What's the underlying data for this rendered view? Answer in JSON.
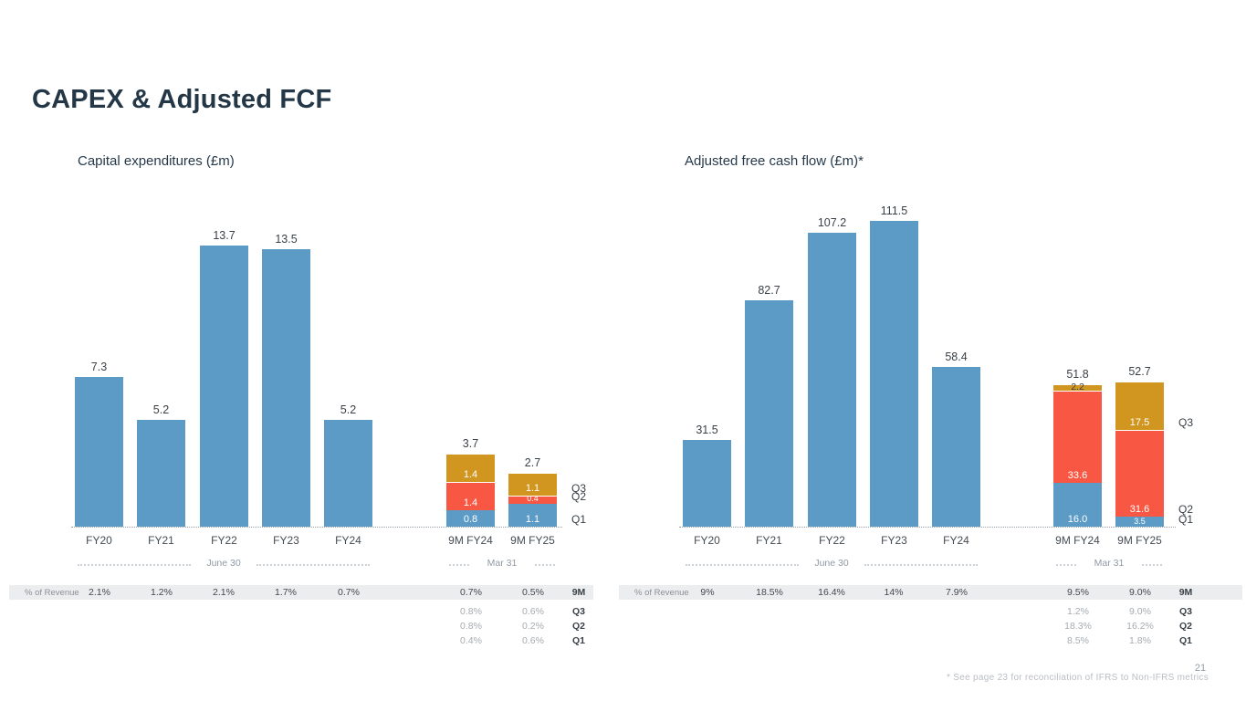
{
  "slide": {
    "title": "CAPEX & Adjusted FCF",
    "page_number": "21",
    "footnote": "* See page 23 for reconciliation of IFRS to Non-IFRS metrics"
  },
  "colors": {
    "bar_blue": "#5B9BC5",
    "q2_red": "#F85843",
    "q3_amber": "#D0961F",
    "table_band": "#ECEDEF",
    "title_text": "#243746"
  },
  "chart_data": [
    {
      "type": "bar",
      "title": "Capital expenditures (£m)",
      "ylabel": "£m",
      "annual": {
        "categories": [
          "FY20",
          "FY21",
          "FY22",
          "FY23",
          "FY24"
        ],
        "values": [
          "7.3",
          "5.2",
          "13.7",
          "13.5",
          "5.2"
        ],
        "period_note": "June 30"
      },
      "nine_month": {
        "categories": [
          "9M FY24",
          "9M FY25"
        ],
        "totals": [
          "3.7",
          "2.7"
        ],
        "series": [
          {
            "name": "Q1",
            "color": "blue",
            "values": [
              "0.8",
              "1.1"
            ]
          },
          {
            "name": "Q2",
            "color": "red",
            "values": [
              "1.4",
              "0.4"
            ]
          },
          {
            "name": "Q3",
            "color": "amber",
            "values": [
              "1.4",
              "1.1"
            ]
          }
        ],
        "period_note": "Mar 31"
      },
      "pct_of_revenue": {
        "label": "% of Revenue",
        "rows": [
          {
            "name": "9M",
            "annual": [
              "2.1%",
              "1.2%",
              "2.1%",
              "1.7%",
              "0.7%"
            ],
            "nine_month": [
              "0.7%",
              "0.5%"
            ]
          },
          {
            "name": "Q3",
            "annual": [],
            "nine_month": [
              "0.8%",
              "0.6%"
            ]
          },
          {
            "name": "Q2",
            "annual": [],
            "nine_month": [
              "0.8%",
              "0.2%"
            ]
          },
          {
            "name": "Q1",
            "annual": [],
            "nine_month": [
              "0.4%",
              "0.6%"
            ]
          }
        ]
      }
    },
    {
      "type": "bar",
      "title": "Adjusted free cash flow (£m)*",
      "ylabel": "£m",
      "annual": {
        "categories": [
          "FY20",
          "FY21",
          "FY22",
          "FY23",
          "FY24"
        ],
        "values": [
          "31.5",
          "82.7",
          "107.2",
          "111.5",
          "58.4"
        ],
        "period_note": "June 30"
      },
      "nine_month": {
        "categories": [
          "9M FY24",
          "9M FY25"
        ],
        "totals": [
          "51.8",
          "52.7"
        ],
        "series": [
          {
            "name": "Q1",
            "color": "blue",
            "values": [
              "16.0",
              "3.5"
            ]
          },
          {
            "name": "Q2",
            "color": "red",
            "values": [
              "33.6",
              "31.6"
            ]
          },
          {
            "name": "Q3",
            "color": "amber",
            "values": [
              "2.2",
              "17.5"
            ]
          }
        ],
        "period_note": "Mar 31"
      },
      "pct_of_revenue": {
        "label": "% of Revenue",
        "rows": [
          {
            "name": "9M",
            "annual": [
              "9%",
              "18.5%",
              "16.4%",
              "14%",
              "7.9%"
            ],
            "nine_month": [
              "9.5%",
              "9.0%"
            ]
          },
          {
            "name": "Q3",
            "annual": [],
            "nine_month": [
              "1.2%",
              "9.0%"
            ]
          },
          {
            "name": "Q2",
            "annual": [],
            "nine_month": [
              "18.3%",
              "16.2%"
            ]
          },
          {
            "name": "Q1",
            "annual": [],
            "nine_month": [
              "8.5%",
              "1.8%"
            ]
          }
        ]
      }
    }
  ]
}
